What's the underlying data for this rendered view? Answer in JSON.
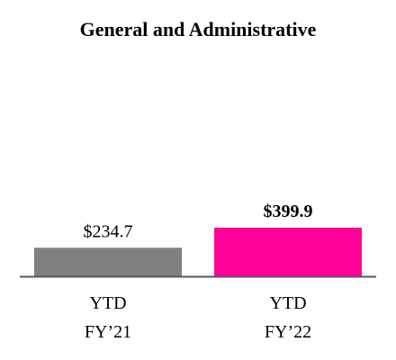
{
  "chart_data": {
    "type": "bar",
    "title": "General and Administrative",
    "categories": [
      [
        "YTD",
        "FY’21"
      ],
      [
        "YTD",
        "FY’22"
      ]
    ],
    "values": [
      234.7,
      399.9
    ],
    "value_labels": [
      "$234.7",
      "$399.9"
    ],
    "value_label_bold": [
      false,
      true
    ],
    "colors": [
      "#808080",
      "#ff0099"
    ],
    "axis_color": "#595959",
    "ylim": [
      0,
      1600
    ],
    "grid": false,
    "legend": "none",
    "xlabel": "",
    "ylabel": ""
  }
}
